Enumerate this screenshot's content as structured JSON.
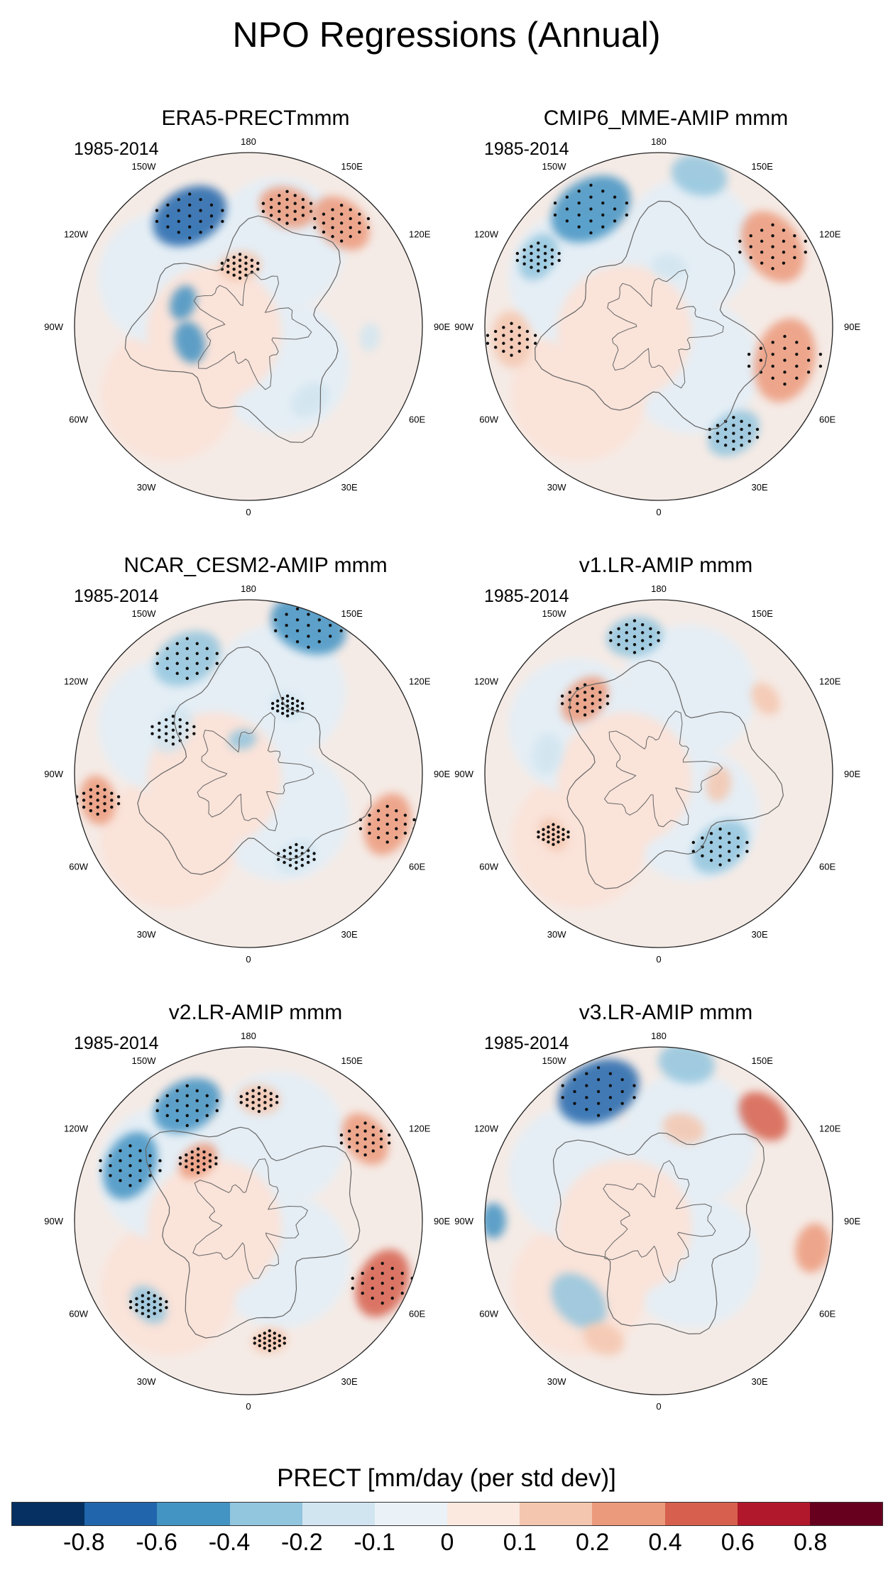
{
  "title": "NPO Regressions (Annual)",
  "panels": [
    {
      "title": "ERA5-PRECTmmm",
      "period": "1985-2014"
    },
    {
      "title": "CMIP6_MME-AMIP  mmm",
      "period": "1985-2014"
    },
    {
      "title": "NCAR_CESM2-AMIP  mmm",
      "period": "1985-2014"
    },
    {
      "title": "v1.LR-AMIP  mmm",
      "period": "1985-2014"
    },
    {
      "title": "v2.LR-AMIP  mmm",
      "period": "1985-2014"
    },
    {
      "title": "v3.LR-AMIP  mmm",
      "period": "1985-2014"
    }
  ],
  "longitude_labels": [
    "180",
    "150E",
    "120E",
    "90E",
    "60E",
    "30E",
    "0",
    "30W",
    "60W",
    "90W",
    "120W",
    "150W"
  ],
  "colorbar": {
    "title": "PRECT [mm/day (per std dev)]",
    "labels": [
      "-0.8",
      "-0.6",
      "-0.4",
      "-0.2",
      "-0.1",
      "0",
      "0.1",
      "0.2",
      "0.4",
      "0.6",
      "0.8"
    ],
    "colors": [
      "#053061",
      "#2166ac",
      "#4393c3",
      "#92c5de",
      "#d1e5f0",
      "#eaf2f8",
      "#fbe8df",
      "#f4c6af",
      "#ec9a7c",
      "#d6604d",
      "#b2182b",
      "#67001f"
    ]
  }
}
